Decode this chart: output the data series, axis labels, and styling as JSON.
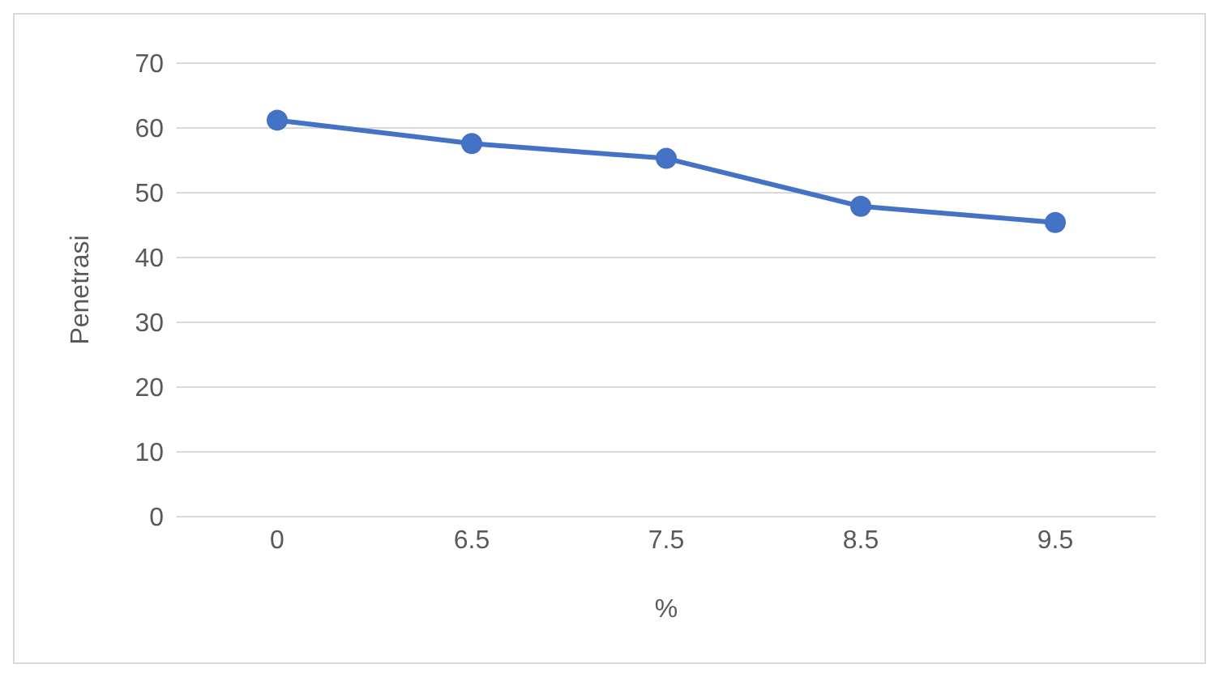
{
  "chart_data": {
    "type": "line",
    "xlabel": "%",
    "ylabel": "Penetrasi",
    "categories": [
      "0",
      "6.5",
      "7.5",
      "8.5",
      "9.5"
    ],
    "series": [
      {
        "color": "#4472c4",
        "values": [
          61.2,
          57.6,
          55.3,
          47.9,
          45.4
        ]
      }
    ],
    "ylim": [
      0,
      70
    ],
    "yticks": [
      0,
      10,
      20,
      30,
      40,
      50,
      60,
      70
    ],
    "grid": "y",
    "marker": "circle",
    "line_style": "solid"
  }
}
